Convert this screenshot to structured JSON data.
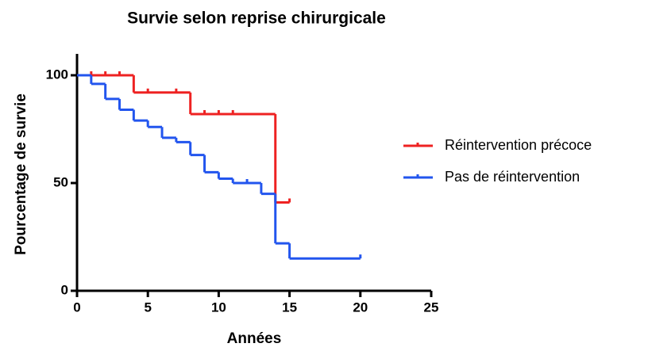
{
  "chart_data": {
    "type": "step",
    "title": "Survie selon reprise chirurgicale",
    "x_label": "Années",
    "y_label": "Pourcentage de survie",
    "xlim": [
      0,
      25
    ],
    "xticks": [
      0,
      5,
      10,
      15,
      20,
      25
    ],
    "ylim": [
      0,
      100
    ],
    "yticks": [
      0,
      50,
      100
    ],
    "series": [
      {
        "name": "Réintervention précoce",
        "color": "#ee2222",
        "x": [
          0,
          4,
          8,
          14,
          15
        ],
        "values": [
          100,
          92,
          82,
          41,
          41
        ],
        "censored": [
          1,
          2,
          3,
          5,
          7,
          9,
          10,
          11,
          15
        ]
      },
      {
        "name": "Pas de réintervention",
        "color": "#2255ee",
        "x": [
          0,
          1,
          2,
          3,
          4,
          5,
          6,
          7,
          8,
          9,
          10,
          11,
          13,
          14,
          15,
          20
        ],
        "values": [
          100,
          96,
          89,
          84,
          79,
          76,
          71,
          69,
          63,
          55,
          52,
          50,
          45,
          22,
          15,
          15
        ],
        "censored": [
          12,
          20
        ]
      }
    ]
  }
}
